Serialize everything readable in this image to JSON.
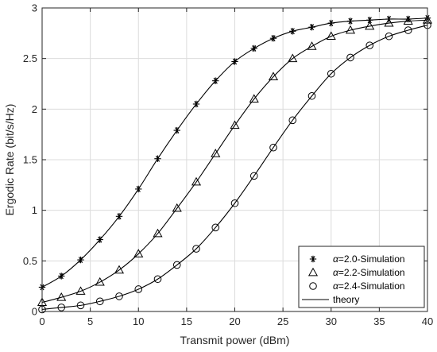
{
  "chart_data": {
    "type": "line",
    "title": "",
    "xlabel": "Transmit power (dBm)",
    "ylabel": "Ergodic Rate (bit/s/Hz)",
    "xlim": [
      0,
      40
    ],
    "ylim": [
      0,
      3
    ],
    "xticks": [
      "0",
      "5",
      "10",
      "15",
      "20",
      "25",
      "30",
      "35",
      "40"
    ],
    "yticks": [
      "0",
      "0.5",
      "1",
      "1.5",
      "2",
      "2.5",
      "3"
    ],
    "grid": true,
    "legend_position": "bottom-right",
    "series": [
      {
        "name": "2.0-Simulation",
        "greek": "α",
        "label_rest": "=2.0-Simulation",
        "marker": "asterisk",
        "x": [
          0,
          2,
          4,
          6,
          8,
          10,
          12,
          14,
          16,
          18,
          20,
          22,
          24,
          26,
          28,
          30,
          32,
          34,
          36,
          38,
          40
        ],
        "values": [
          0.24,
          0.35,
          0.51,
          0.71,
          0.94,
          1.21,
          1.51,
          1.79,
          2.05,
          2.28,
          2.47,
          2.6,
          2.7,
          2.77,
          2.81,
          2.85,
          2.87,
          2.88,
          2.89,
          2.89,
          2.9
        ]
      },
      {
        "name": "2.2-Simulation",
        "greek": "α",
        "label_rest": "=2.2-Simulation",
        "marker": "triangle",
        "x": [
          0,
          2,
          4,
          6,
          8,
          10,
          12,
          14,
          16,
          18,
          20,
          22,
          24,
          26,
          28,
          30,
          32,
          34,
          36,
          38,
          40
        ],
        "values": [
          0.09,
          0.14,
          0.2,
          0.29,
          0.41,
          0.57,
          0.77,
          1.02,
          1.28,
          1.56,
          1.84,
          2.1,
          2.32,
          2.5,
          2.62,
          2.72,
          2.78,
          2.82,
          2.85,
          2.87,
          2.88
        ]
      },
      {
        "name": "2.4-Simulation",
        "greek": "α",
        "label_rest": "=2.4-Simulation",
        "marker": "circle",
        "x": [
          0,
          2,
          4,
          6,
          8,
          10,
          12,
          14,
          16,
          18,
          20,
          22,
          24,
          26,
          28,
          30,
          32,
          34,
          36,
          38,
          40
        ],
        "values": [
          0.02,
          0.04,
          0.06,
          0.1,
          0.15,
          0.22,
          0.32,
          0.46,
          0.62,
          0.83,
          1.07,
          1.34,
          1.62,
          1.89,
          2.13,
          2.35,
          2.51,
          2.63,
          2.72,
          2.78,
          2.83
        ]
      },
      {
        "name": "theory",
        "marker": "line"
      }
    ]
  }
}
